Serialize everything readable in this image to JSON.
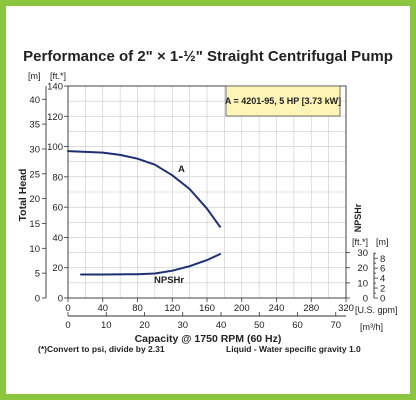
{
  "chart_data": {
    "type": "line",
    "title": "Performance of 2\" × 1-½\" Straight Centrifugal Pump",
    "legend_note": "A = 4201-95, 5 HP [3.73 kW]",
    "ylabel": "Total Head",
    "ylabel_m_unit": "[m]",
    "ylabel_ft_unit": "[ft.*]",
    "xlabel": "Capacity @ 1750 RPM (60 Hz)",
    "xlabel_gpm_unit": "[U.S. gpm]",
    "xlabel_m3h_unit": "[m³/h]",
    "npsh_label": "NPSHr",
    "npsh_ft_unit": "[ft.*]",
    "npsh_m_unit": "[m]",
    "footnote_left": "(*)Convert to psi, divide by 2.31",
    "footnote_right": "Liquid - Water specific gravity 1.0",
    "grid": true,
    "xlim": [
      0,
      320
    ],
    "ylim_ft": [
      0,
      140
    ],
    "x_ticks_gpm": [
      "0",
      "40",
      "80",
      "120",
      "160",
      "200",
      "240",
      "280",
      "320"
    ],
    "x_ticks_m3h": [
      "0",
      "10",
      "20",
      "30",
      "40",
      "50",
      "60",
      "70"
    ],
    "y_ticks_ft": [
      "0",
      "20",
      "40",
      "60",
      "80",
      "100",
      "120",
      "140"
    ],
    "y_ticks_m": [
      "0",
      "5",
      "10",
      "15",
      "20",
      "25",
      "30",
      "35",
      "40"
    ],
    "npsh_ticks_ft": [
      "0",
      "10",
      "20",
      "30"
    ],
    "npsh_ticks_m": [
      "0",
      "2",
      "4",
      "6",
      "8"
    ],
    "series": [
      {
        "name": "A",
        "axis": "head_ft",
        "color": "#1f2f73",
        "x": [
          0,
          20,
          40,
          60,
          80,
          100,
          120,
          140,
          160,
          175
        ],
        "y": [
          97,
          96.5,
          96,
          94.5,
          92,
          88,
          81,
          72,
          59,
          47
        ]
      },
      {
        "name": "NPSHr",
        "axis": "head_ft",
        "color": "#1f2f73",
        "x": [
          15,
          40,
          80,
          100,
          120,
          140,
          160,
          175
        ],
        "y": [
          15.5,
          15.5,
          15.7,
          16.2,
          18,
          21,
          25,
          29
        ]
      }
    ]
  }
}
